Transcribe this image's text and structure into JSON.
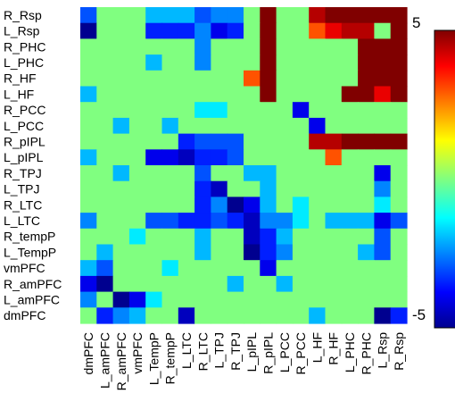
{
  "chart_data": {
    "type": "heatmap",
    "title": "",
    "xlabel": "",
    "ylabel": "",
    "row_labels": [
      "R_Rsp",
      "L_Rsp",
      "R_PHC",
      "L_PHC",
      "R_HF",
      "L_HF",
      "R_PCC",
      "L_PCC",
      "R_pIPL",
      "L_pIPL",
      "R_TPJ",
      "L_TPJ",
      "R_LTC",
      "L_LTC",
      "R_tempP",
      "L_TempP",
      "vmPFC",
      "R_amPFC",
      "L_amPFC",
      "dmPFC"
    ],
    "col_labels": [
      "dmPFC",
      "L_amPFC",
      "R_amPFC",
      "vmPFC",
      "L_TempP",
      "R_tempP",
      "L_LTC",
      "R_LTC",
      "L_TPJ",
      "R_TPJ",
      "L_pIPL",
      "R_pIPL",
      "L_PCC",
      "R_PCC",
      "L_HF",
      "R_HF",
      "L_PHC",
      "R_PHC",
      "L_Rsp",
      "R_Rsp"
    ],
    "colorbar": {
      "min": -5,
      "max": 5,
      "tick_labels": [
        "5",
        "-5"
      ],
      "colormap": "jet"
    },
    "background_value": 0,
    "values": [
      [
        -3,
        0,
        0,
        0,
        -2,
        -2,
        -2,
        -3,
        -2.5,
        -2.5,
        0,
        5,
        0,
        0,
        4.5,
        5,
        5,
        5,
        5,
        5
      ],
      [
        -5,
        0,
        0,
        0,
        -3.5,
        -3.5,
        -3.5,
        -2.5,
        -4,
        -3.5,
        0,
        5,
        0,
        0,
        3,
        4,
        4.5,
        4.5,
        0,
        5
      ],
      [
        0,
        0,
        0,
        0,
        0,
        0,
        0,
        -2.5,
        0,
        0,
        0,
        5,
        0,
        0,
        0,
        0,
        0,
        5,
        5,
        5
      ],
      [
        0,
        0,
        0,
        0,
        -2,
        0,
        0,
        -2.5,
        0,
        0,
        0,
        5,
        0,
        0,
        0,
        0,
        0,
        5,
        5,
        5
      ],
      [
        0,
        0,
        0,
        0,
        0,
        0,
        0,
        0,
        0,
        0,
        3,
        5,
        0,
        0,
        0,
        0,
        0,
        5,
        5,
        5
      ],
      [
        -2,
        0,
        0,
        0,
        0,
        0,
        0,
        0,
        0,
        0,
        0,
        5,
        0,
        0,
        0,
        0,
        5,
        5,
        4,
        5
      ],
      [
        0,
        0,
        0,
        0,
        0,
        0,
        0,
        -1.5,
        -1.5,
        0,
        0,
        0,
        0,
        -4,
        0,
        0,
        0,
        0,
        0,
        0
      ],
      [
        0,
        0,
        -2,
        0,
        0,
        -2,
        0,
        0,
        0,
        0,
        0,
        0,
        0,
        0,
        -4,
        0,
        0,
        0,
        0,
        0
      ],
      [
        0,
        0,
        0,
        0,
        0,
        0,
        -3.5,
        -3,
        -3,
        -3,
        0,
        0,
        0,
        0,
        4.5,
        4.5,
        5,
        5,
        5,
        5
      ],
      [
        -2,
        0,
        0,
        0,
        -4,
        -4,
        -4.5,
        -3.5,
        -3.5,
        -3,
        0,
        0,
        0,
        0,
        0,
        3,
        0,
        0,
        0,
        0
      ],
      [
        0,
        0,
        -2,
        0,
        0,
        0,
        0,
        -3,
        0,
        0,
        -2,
        -2,
        0,
        0,
        0,
        0,
        0,
        0,
        -4,
        0
      ],
      [
        0,
        0,
        0,
        0,
        0,
        0,
        0,
        -3.5,
        -4.5,
        0,
        0,
        -2,
        0,
        0,
        0,
        0,
        0,
        0,
        -2.5,
        0
      ],
      [
        0,
        0,
        0,
        0,
        0,
        0,
        0,
        -3.5,
        -2.5,
        -5,
        -4,
        -2,
        0,
        -1.5,
        0,
        0,
        0,
        0,
        -1.5,
        0
      ],
      [
        -2.5,
        0,
        0,
        0,
        -3,
        -3,
        -3.5,
        -3.5,
        -3,
        -3.5,
        -4.5,
        -2.5,
        -2.5,
        -1.5,
        0,
        -2,
        -2,
        -2,
        -4,
        -3
      ],
      [
        0,
        0,
        0,
        -1.5,
        0,
        0,
        0,
        -2,
        0,
        0,
        -4.5,
        -3.5,
        -2,
        0,
        0,
        0,
        0,
        0,
        -3,
        0
      ],
      [
        0,
        -2,
        0,
        0,
        0,
        0,
        0,
        -2,
        0,
        0,
        -5,
        -3.5,
        -2.5,
        0,
        0,
        0,
        0,
        -2,
        -3,
        0
      ],
      [
        -2,
        -3,
        0,
        0,
        0,
        -1.5,
        0,
        0,
        0,
        0,
        0,
        -4,
        0,
        0,
        0,
        0,
        0,
        0,
        0,
        0
      ],
      [
        -4,
        -5,
        0,
        0,
        0,
        0,
        0,
        0,
        0,
        -2,
        0,
        0,
        -2,
        0,
        0,
        0,
        0,
        0,
        0,
        0
      ],
      [
        -2.5,
        0,
        -5,
        -4,
        -1.5,
        0,
        0,
        0,
        0,
        0,
        0,
        0,
        0,
        0,
        0,
        0,
        0,
        0,
        0,
        0
      ],
      [
        0,
        -3.5,
        -2.5,
        -2,
        0,
        0,
        -4.5,
        0,
        0,
        0,
        0,
        0,
        0,
        0,
        -2,
        0,
        0,
        0,
        -5,
        -3.5
      ]
    ]
  }
}
